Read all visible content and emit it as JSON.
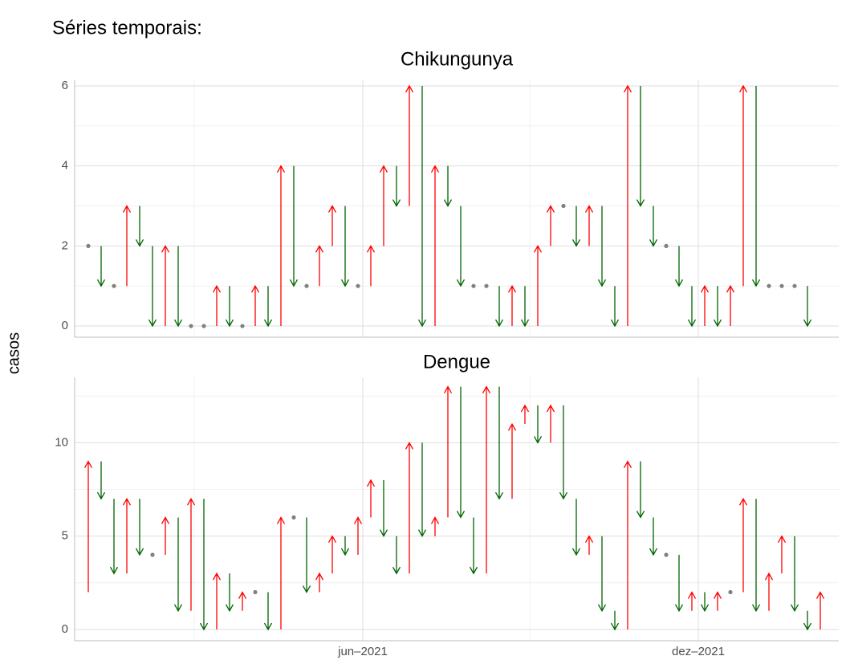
{
  "chart_data": {
    "type": "arrow",
    "title": "Séries temporais:",
    "ylabel": "casos",
    "xlim": [
      -1.0625,
      58.4375
    ],
    "xticks": [
      {
        "value": 21.375,
        "label": "jun–2021"
      },
      {
        "value": 47.5,
        "label": "dez–2021"
      }
    ],
    "x_minor_ticks": [
      8.25,
      34.375
    ],
    "grid": true,
    "up_color": "#ff0000",
    "down_color": "#006400",
    "same_color": "#808080",
    "panels": [
      {
        "title": "Chikungunya",
        "start": 2,
        "x": [
          0,
          1,
          2,
          3,
          4,
          5,
          6,
          7,
          8,
          9,
          10,
          11,
          12,
          13,
          14,
          15,
          16,
          17,
          18,
          19,
          20,
          21,
          22,
          23,
          24,
          25,
          26,
          27,
          28,
          29,
          30,
          31,
          32,
          33,
          34,
          35,
          36,
          37,
          38,
          39,
          40,
          41,
          42,
          43,
          44,
          45,
          46,
          47,
          48,
          49,
          50,
          51,
          52,
          53,
          54,
          55,
          56
        ],
        "values": [
          2,
          1,
          1,
          3,
          2,
          0,
          2,
          0,
          0,
          0,
          1,
          0,
          0,
          1,
          0,
          4,
          1,
          1,
          2,
          3,
          1,
          1,
          2,
          4,
          3,
          6,
          0,
          4,
          3,
          1,
          1,
          1,
          0,
          1,
          0,
          2,
          3,
          3,
          2,
          3,
          1,
          0,
          6,
          3,
          2,
          2,
          1,
          0,
          1,
          0,
          1,
          6,
          1,
          1,
          1,
          1,
          0
        ],
        "ylim": [
          -0.28,
          6.14
        ],
        "yticks": [
          0,
          2,
          4,
          6
        ],
        "y_minor_ticks": [
          1,
          3,
          5
        ]
      },
      {
        "title": "Dengue",
        "start": 2,
        "x": [
          0,
          1,
          2,
          3,
          4,
          5,
          6,
          7,
          8,
          9,
          10,
          11,
          12,
          13,
          14,
          15,
          16,
          17,
          18,
          19,
          20,
          21,
          22,
          23,
          24,
          25,
          26,
          27,
          28,
          29,
          30,
          31,
          32,
          33,
          34,
          35,
          36,
          37,
          38,
          39,
          40,
          41,
          42,
          43,
          44,
          45,
          46,
          47,
          48,
          49,
          50,
          51,
          52,
          53,
          54,
          55,
          56,
          57
        ],
        "values": [
          9,
          7,
          3,
          7,
          4,
          4,
          6,
          1,
          7,
          0,
          3,
          1,
          2,
          2,
          0,
          6,
          6,
          2,
          3,
          5,
          4,
          6,
          8,
          5,
          3,
          10,
          5,
          6,
          13,
          6,
          3,
          13,
          7,
          11,
          12,
          10,
          12,
          7,
          4,
          5,
          1,
          0,
          9,
          6,
          4,
          4,
          1,
          2,
          1,
          2,
          2,
          7,
          1,
          3,
          5,
          1,
          0,
          2
        ],
        "ylim": [
          -0.6,
          13.5
        ],
        "yticks": [
          0,
          5,
          10
        ],
        "y_minor_ticks": [
          2.5,
          7.5,
          12.5
        ]
      }
    ]
  }
}
